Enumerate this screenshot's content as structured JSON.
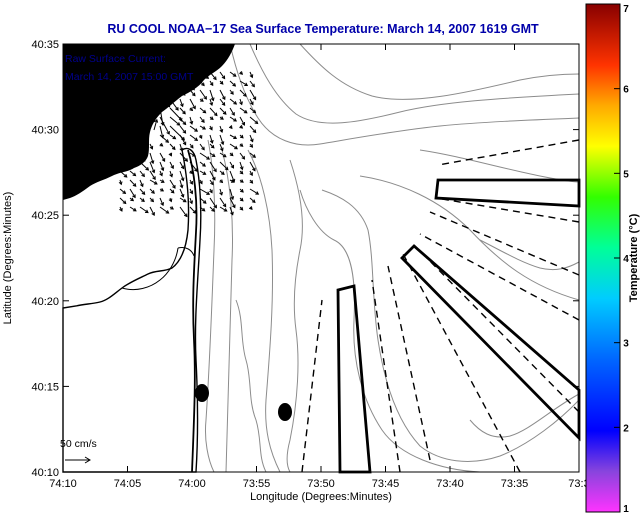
{
  "title": "RU COOL  NOAA−17  Sea Surface Temperature:  March 14, 2007 1619 GMT",
  "current_label": {
    "line1": "Raw Surface Current:",
    "line2": "March 14, 2007 15:00 GMT"
  },
  "scale_label": "50 cm/s",
  "xlabel": "Longitude (Degrees:Minutes)",
  "ylabel": "Latitude (Degrees:Minutes)",
  "xticks": [
    "74:10",
    "74:05",
    "74:00",
    "73:55",
    "73:50",
    "73:45",
    "73:40",
    "73:35",
    "73:3"
  ],
  "yticks": [
    "40:35",
    "40:30",
    "40:25",
    "40:20",
    "40:15",
    "40:10"
  ],
  "colorbar": {
    "label": "Temperature (°C)",
    "ticks": [
      "7",
      "6",
      "5",
      "4",
      "3",
      "2",
      "1"
    ]
  },
  "colors": {
    "title": "#0000aa",
    "annotation": "#00008b",
    "contour": "#8c8c8c",
    "land": "#000000",
    "ocean": "#ffffff"
  }
}
